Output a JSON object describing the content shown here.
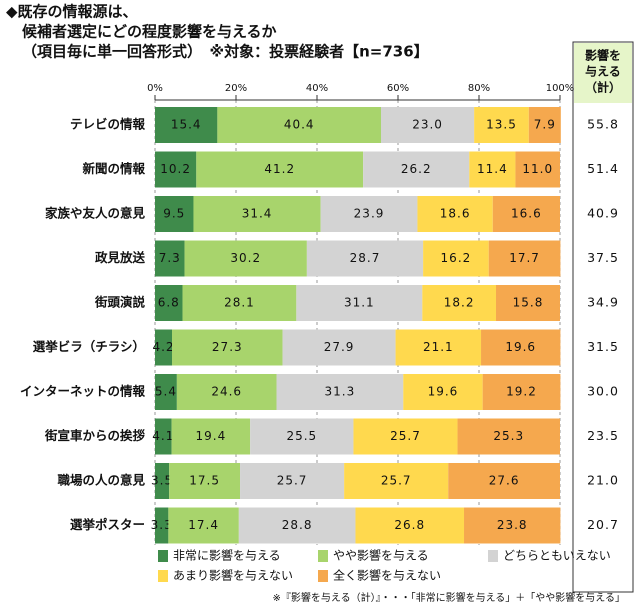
{
  "chart_data": {
    "type": "stacked-bar-100",
    "title": [
      "◆既存の情報源は、",
      "候補者選定にどの程度影響を与えるか",
      "（項目毎に単一回答形式）　※対象：投票経験者【n=736】"
    ],
    "categories": [
      "テレビの情報",
      "新聞の情報",
      "家族や友人の意見",
      "政見放送",
      "街頭演説",
      "選挙ビラ（チラシ）",
      "インターネットの情報",
      "街宣車からの挨拶",
      "職場の人の意見",
      "選挙ポスター"
    ],
    "series": [
      {
        "name": "非常に影響を与える",
        "color": "#3f8b4b",
        "values": [
          15.4,
          10.2,
          9.5,
          7.3,
          6.8,
          4.2,
          5.4,
          4.1,
          3.5,
          3.3
        ],
        "value_labels": [
          "15.4",
          "10.2",
          "9.5",
          "7.3",
          "6.8",
          "4.2",
          "5.4",
          "4.1",
          "3.5",
          "3.3"
        ]
      },
      {
        "name": "やや影響を与える",
        "color": "#a8d46c",
        "values": [
          40.4,
          41.2,
          31.4,
          30.2,
          28.1,
          27.3,
          24.6,
          19.4,
          17.5,
          17.4
        ],
        "value_labels": [
          "40.4",
          "41.2",
          "31.4",
          "30.2",
          "28.1",
          "27.3",
          "24.6",
          "19.4",
          "17.5",
          "17.4"
        ]
      },
      {
        "name": "どちらともいえない",
        "color": "#d3d3d3",
        "values": [
          23.0,
          26.2,
          23.9,
          28.7,
          31.1,
          27.9,
          31.3,
          25.5,
          25.7,
          28.8
        ],
        "value_labels": [
          "23.0",
          "26.2",
          "23.9",
          "28.7",
          "31.1",
          "27.9",
          "31.3",
          "25.5",
          "25.7",
          "28.8"
        ]
      },
      {
        "name": "あまり影響を与えない",
        "color": "#ffd94e",
        "values": [
          13.5,
          11.4,
          18.6,
          16.2,
          18.2,
          21.1,
          19.6,
          25.7,
          25.7,
          26.8
        ],
        "value_labels": [
          "13.5",
          "11.4",
          "18.6",
          "16.2",
          "18.2",
          "21.1",
          "19.6",
          "25.7",
          "25.7",
          "26.8"
        ]
      },
      {
        "name": "全く影響を与えない",
        "color": "#f5a84e",
        "values": [
          7.9,
          11.0,
          16.6,
          17.7,
          15.8,
          19.6,
          19.2,
          25.3,
          27.6,
          23.8
        ],
        "value_labels": [
          "7.9",
          "11.0",
          "16.6",
          "17.7",
          "15.8",
          "19.6",
          "19.2",
          "25.3",
          "27.6",
          "23.8"
        ]
      }
    ],
    "xlim": [
      0,
      100
    ],
    "xticks": [
      {
        "value": 0,
        "label": "0%"
      },
      {
        "value": 20,
        "label": "20%"
      },
      {
        "value": 40,
        "label": "40%"
      },
      {
        "value": 60,
        "label": "60%"
      },
      {
        "value": 80,
        "label": "80%"
      },
      {
        "value": 100,
        "label": "100%"
      }
    ],
    "grid": true,
    "total_header": [
      "影響を",
      "与える",
      "（計）"
    ],
    "totals": [
      55.8,
      51.4,
      40.9,
      37.5,
      34.9,
      31.5,
      30.0,
      23.5,
      21.0,
      20.7
    ],
    "total_labels": [
      "55.8",
      "51.4",
      "40.9",
      "37.5",
      "34.9",
      "31.5",
      "30.0",
      "23.5",
      "21.0",
      "20.7"
    ],
    "footnote": "※『影響を与える（計）』・・・「非常に影響を与える」＋「やや影響を与える」"
  }
}
